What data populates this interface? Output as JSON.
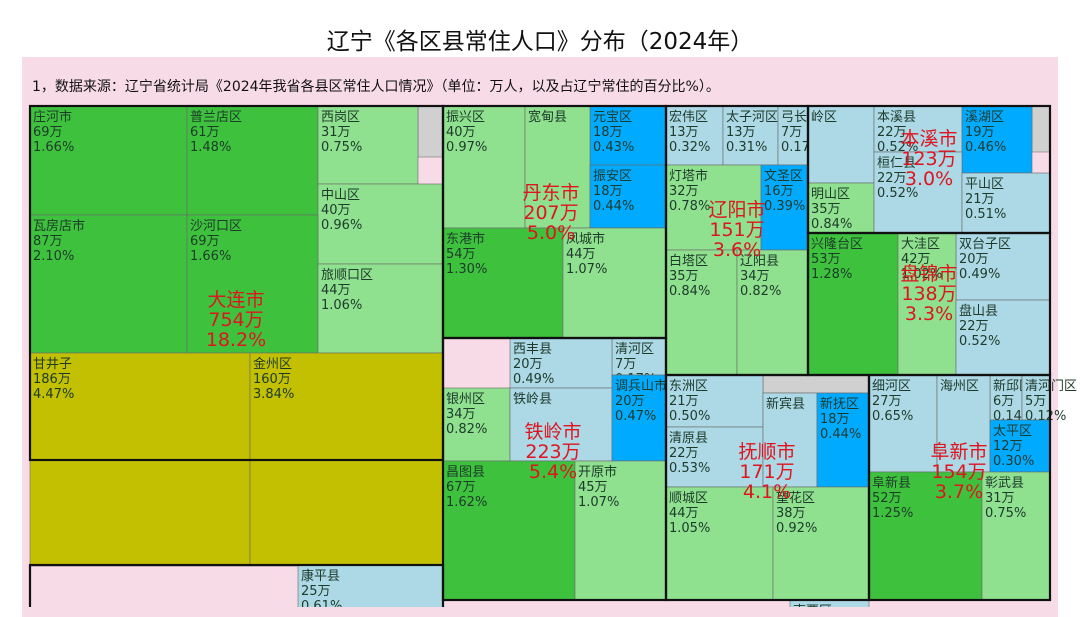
{
  "page": {
    "title": "辽宁《各区县常住人口》分布（2024年）",
    "source_note": "1，数据来源：辽宁省统计局《2024年我省各县区常住人口情况》（单位：万人，以及占辽宁常住的百分比%）。"
  },
  "colors": {
    "border": "#111111",
    "yellow": "#c2c000",
    "green": "#3ec23e",
    "light_green": "#8fe08f",
    "light_blue": "#add8e6",
    "bright_blue": "#00aaff",
    "gray": "#d0d0d0",
    "city_label": "#e0141e"
  },
  "chart_data": {
    "type": "treemap",
    "units": {
      "population": "万",
      "share": "%"
    },
    "cities": [
      {
        "name": "大连市",
        "population": 754,
        "share": 18.2,
        "districts": [
          {
            "name": "庄河市",
            "population": 69,
            "share": 1.66,
            "color": "green"
          },
          {
            "name": "普兰店区",
            "population": 61,
            "share": 1.48,
            "color": "green"
          },
          {
            "name": "西岗区",
            "population": 31,
            "share": 0.75,
            "color": "light_green"
          },
          {
            "name": "中山区",
            "population": 40,
            "share": 0.96,
            "color": "light_green"
          },
          {
            "name": "瓦房店市",
            "population": 87,
            "share": 2.1,
            "color": "green"
          },
          {
            "name": "沙河口区",
            "population": 69,
            "share": 1.66,
            "color": "green"
          },
          {
            "name": "旅顺口区",
            "population": 44,
            "share": 1.06,
            "color": "light_green"
          },
          {
            "name": "甘井子",
            "population": 186,
            "share": 4.47,
            "color": "yellow"
          },
          {
            "name": "金州区",
            "population": 160,
            "share": 3.84,
            "color": "yellow"
          }
        ]
      },
      {
        "name": "丹东市",
        "population": 207,
        "share": 5.0,
        "districts": [
          {
            "name": "元宝区",
            "population": 18,
            "share": 0.43,
            "color": "bright_blue"
          },
          {
            "name": "振兴区",
            "population": 40,
            "share": 0.97,
            "color": "light_green"
          },
          {
            "name": "宽甸县",
            "population": null,
            "share": null,
            "color": "light_green"
          },
          {
            "name": "振安区",
            "population": 18,
            "share": 0.44,
            "color": "bright_blue"
          },
          {
            "name": "东港市",
            "population": 54,
            "share": 1.3,
            "color": "green"
          },
          {
            "name": "凤城市",
            "population": 44,
            "share": 1.07,
            "color": "light_green"
          },
          {
            "name": "清河区",
            "population": 7,
            "share": 0.17,
            "color": "light_blue"
          }
        ]
      },
      {
        "name": "辽阳市",
        "population": 151,
        "share": 3.6,
        "districts": [
          {
            "name": "宏伟区",
            "population": 13,
            "share": 0.32,
            "color": "light_blue"
          },
          {
            "name": "太子河区",
            "population": 13,
            "share": 0.31,
            "color": "light_blue"
          },
          {
            "name": "弓长岭",
            "population": 7,
            "share": 0.17,
            "color": "light_blue"
          },
          {
            "name": "灯塔市",
            "population": 32,
            "share": 0.78,
            "color": "light_green"
          },
          {
            "name": "文圣区",
            "population": 16,
            "share": 0.39,
            "color": "bright_blue"
          },
          {
            "name": "白塔区",
            "population": 35,
            "share": 0.84,
            "color": "light_green"
          },
          {
            "name": "辽阳县",
            "population": 34,
            "share": 0.82,
            "color": "light_green"
          }
        ]
      },
      {
        "name": "本溪市",
        "population": 123,
        "share": 3.0,
        "districts": [
          {
            "name": "岭区",
            "population": null,
            "share": null,
            "color": "light_blue"
          },
          {
            "name": "本溪县",
            "population": 22,
            "share": 0.52,
            "color": "light_blue"
          },
          {
            "name": "溪湖区",
            "population": 19,
            "share": 0.46,
            "color": "bright_blue"
          },
          {
            "name": "明山区",
            "population": 35,
            "share": 0.84,
            "color": "light_green"
          },
          {
            "name": "桓仁县",
            "population": 22,
            "share": 0.52,
            "color": "light_blue"
          },
          {
            "name": "平山区",
            "population": 21,
            "share": 0.51,
            "color": "light_blue"
          }
        ]
      },
      {
        "name": "盘锦市",
        "population": 138,
        "share": 3.3,
        "districts": [
          {
            "name": "双台子区",
            "population": 20,
            "share": 0.49,
            "color": "light_blue"
          },
          {
            "name": "兴隆台区",
            "population": 53,
            "share": 1.28,
            "color": "green"
          },
          {
            "name": "大洼区",
            "population": 42,
            "share": 1.02,
            "color": "light_green"
          },
          {
            "name": "盘山县",
            "population": 22,
            "share": 0.52,
            "color": "light_blue"
          }
        ]
      },
      {
        "name": "铁岭市",
        "population": 223,
        "share": 5.4,
        "districts": [
          {
            "name": "西丰县",
            "population": 20,
            "share": 0.49,
            "color": "light_blue"
          },
          {
            "name": "银州区",
            "population": 34,
            "share": 0.82,
            "color": "light_green"
          },
          {
            "name": "铁岭县",
            "population": null,
            "share": null,
            "color": "light_blue"
          },
          {
            "name": "调兵山市",
            "population": 20,
            "share": 0.47,
            "color": "bright_blue"
          },
          {
            "name": "昌图县",
            "population": 67,
            "share": 1.62,
            "color": "green"
          },
          {
            "name": "开原市",
            "population": 45,
            "share": 1.07,
            "color": "light_green"
          }
        ]
      },
      {
        "name": "抚顺市",
        "population": 171,
        "share": 4.1,
        "districts": [
          {
            "name": "东洲区",
            "population": 21,
            "share": 0.5,
            "color": "light_blue"
          },
          {
            "name": "清原县",
            "population": 22,
            "share": 0.53,
            "color": "light_blue"
          },
          {
            "name": "新宾县",
            "population": null,
            "share": null,
            "color": "light_blue"
          },
          {
            "name": "新抚区",
            "population": 18,
            "share": 0.44,
            "color": "bright_blue"
          },
          {
            "name": "顺城区",
            "population": 44,
            "share": 1.05,
            "color": "light_green"
          },
          {
            "name": "望花区",
            "population": 38,
            "share": 0.92,
            "color": "light_green"
          }
        ]
      },
      {
        "name": "阜新市",
        "population": 154,
        "share": 3.7,
        "districts": [
          {
            "name": "新邱区",
            "population": 6,
            "share": 0.14,
            "color": "light_blue"
          },
          {
            "name": "清河门区",
            "population": 5,
            "share": 0.12,
            "color": "light_blue"
          },
          {
            "name": "细河区",
            "population": 27,
            "share": 0.65,
            "color": "light_blue"
          },
          {
            "name": "海州区",
            "population": null,
            "share": null,
            "color": "light_blue"
          },
          {
            "name": "太平区",
            "population": 12,
            "share": 0.3,
            "color": "bright_blue"
          },
          {
            "name": "阜新县",
            "population": 52,
            "share": 1.25,
            "color": "green"
          },
          {
            "name": "彰武县",
            "population": 31,
            "share": 0.75,
            "color": "light_green"
          }
        ]
      },
      {
        "name": "",
        "districts": [
          {
            "name": "康平县",
            "population": 25,
            "share": 0.61,
            "color": "light_blue"
          },
          {
            "name": "南票区",
            "population": null,
            "share": null,
            "color": "light_blue"
          }
        ]
      }
    ]
  }
}
